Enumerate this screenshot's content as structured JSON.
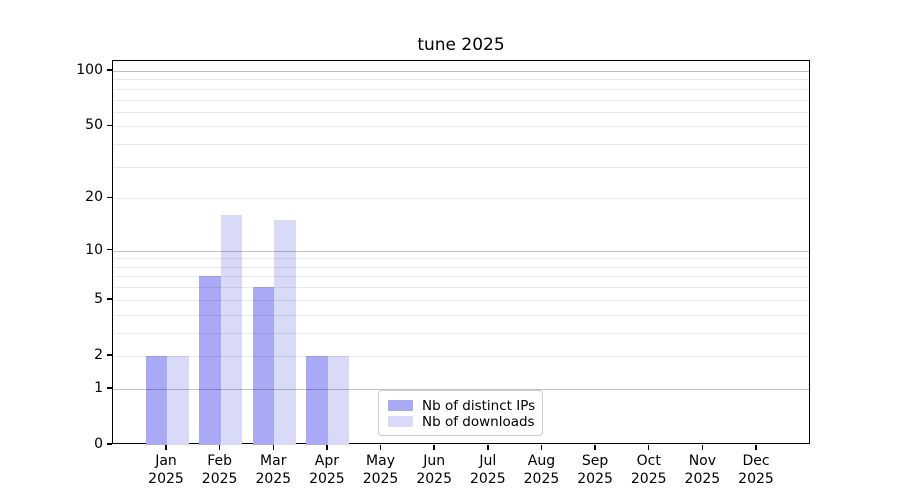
{
  "chart_data": {
    "type": "bar",
    "title": "tune 2025",
    "categories": [
      "Jan",
      "Feb",
      "Mar",
      "Apr",
      "May",
      "Jun",
      "Jul",
      "Aug",
      "Sep",
      "Oct",
      "Nov",
      "Dec"
    ],
    "category_year": "2025",
    "series": [
      {
        "name": "Nb of distinct IPs",
        "color": "#a9a9f5",
        "values": [
          2,
          7,
          6,
          2,
          0,
          0,
          0,
          0,
          0,
          0,
          0,
          0
        ]
      },
      {
        "name": "Nb of downloads",
        "color": "#d9d9f8",
        "values": [
          2,
          16,
          15,
          2,
          0,
          0,
          0,
          0,
          0,
          0,
          0,
          0
        ]
      }
    ],
    "y_scale": "log(1+x)",
    "y_ticks": [
      0,
      1,
      2,
      5,
      10,
      20,
      50,
      100
    ],
    "y_gridlines_major": [
      1,
      10,
      100
    ],
    "y_gridlines_minor": [
      2,
      3,
      4,
      5,
      6,
      7,
      8,
      9,
      20,
      30,
      40,
      50,
      60,
      70,
      80,
      90
    ],
    "ylim": [
      0,
      113
    ],
    "xlabel": "",
    "ylabel": "",
    "grid": true,
    "legend_position": "lower center"
  },
  "colors": {
    "background": "#ffffff",
    "spine": "#000000",
    "grid_minor": "#ebebeb",
    "grid_major": "#c2c2c2",
    "legend_border": "#cccccc"
  }
}
